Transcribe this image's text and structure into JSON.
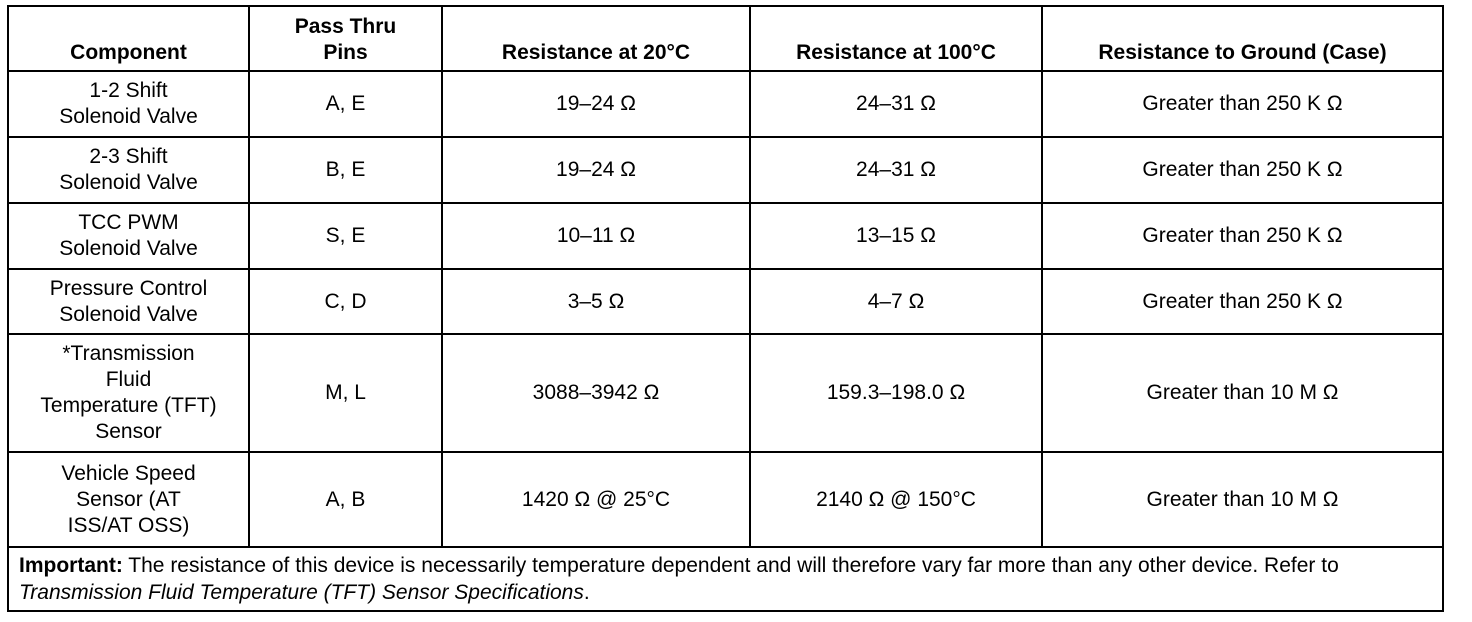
{
  "table": {
    "header": [
      "Component",
      [
        "Pass Thru",
        "Pins"
      ],
      "Resistance at 20°C",
      "Resistance at 100°C",
      "Resistance to Ground (Case)"
    ],
    "rows": [
      [
        [
          "1-2 Shift",
          "Solenoid Valve"
        ],
        "A, E",
        "19–24 Ω",
        "24–31 Ω",
        "Greater than 250 K Ω"
      ],
      [
        [
          "2-3 Shift",
          "Solenoid Valve"
        ],
        "B, E",
        "19–24 Ω",
        "24–31 Ω",
        "Greater than 250 K Ω"
      ],
      [
        [
          "TCC PWM",
          "Solenoid Valve"
        ],
        "S, E",
        "10–11 Ω",
        "13–15 Ω",
        "Greater than 250 K Ω"
      ],
      [
        [
          "Pressure Control",
          "Solenoid Valve"
        ],
        "C, D",
        "3–5 Ω",
        "4–7 Ω",
        "Greater than 250 K Ω"
      ],
      [
        [
          "*Transmission",
          "Fluid",
          "Temperature (TFT)",
          "Sensor"
        ],
        "M, L",
        "3088–3942 Ω",
        "159.3–198.0 Ω",
        "Greater than 10 M Ω"
      ],
      [
        [
          "Vehicle Speed",
          "Sensor (AT",
          "ISS/AT OSS)"
        ],
        "A, B",
        "1420 Ω @ 25°C",
        "2140 Ω @ 150°C",
        "Greater than 10 M Ω"
      ]
    ],
    "note": {
      "label": "Important:",
      "text": "The resistance of this device is necessarily temperature dependent and will therefore vary far more than any other device. Refer to",
      "reference": "Transmission Fluid Temperature (TFT) Sensor Specifications",
      "end": "."
    }
  }
}
